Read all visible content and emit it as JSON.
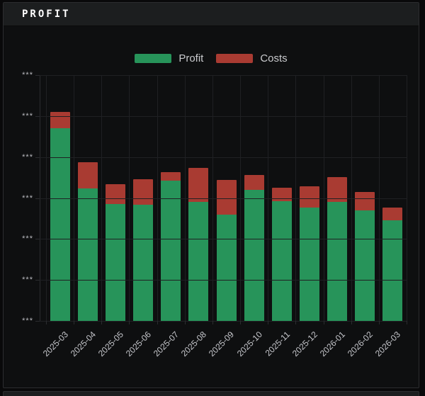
{
  "panel": {
    "title": "PROFIT"
  },
  "legend": {
    "items": [
      {
        "label": "Profit",
        "color": "#27945a"
      },
      {
        "label": "Costs",
        "color": "#a93b32"
      }
    ]
  },
  "colors": {
    "profit": "#27945a",
    "costs": "#a93b32",
    "grid": "#1f2023",
    "axis": "#2b2c2f",
    "panel_header_bg": "#1c1e1f",
    "chart_bg": "#0e0f10"
  },
  "chart_data": {
    "type": "bar",
    "stacked": true,
    "title": "PROFIT",
    "xlabel": "",
    "ylabel": "",
    "categories": [
      "2025-03",
      "2025-04",
      "2025-05",
      "2025-06",
      "2025-07",
      "2025-08",
      "2025-09",
      "2025-10",
      "2025-11",
      "2025-12",
      "2026-01",
      "2026-02",
      "2026-03"
    ],
    "series": [
      {
        "name": "Profit",
        "color": "#27945a",
        "values": [
          4.7,
          3.23,
          2.85,
          2.84,
          3.42,
          2.9,
          2.59,
          3.2,
          2.92,
          2.77,
          2.9,
          2.7,
          2.46
        ]
      },
      {
        "name": "Costs",
        "color": "#a93b32",
        "values": [
          0.4,
          0.64,
          0.48,
          0.62,
          0.21,
          0.83,
          0.85,
          0.36,
          0.33,
          0.52,
          0.61,
          0.45,
          0.31
        ]
      }
    ],
    "ylim": [
      0,
      6
    ],
    "y_tick_labels": [
      "***",
      "***",
      "***",
      "***",
      "***",
      "***",
      "***"
    ],
    "grid": true,
    "legend_position": "top-center",
    "x_tick_rotation_deg": -45
  }
}
